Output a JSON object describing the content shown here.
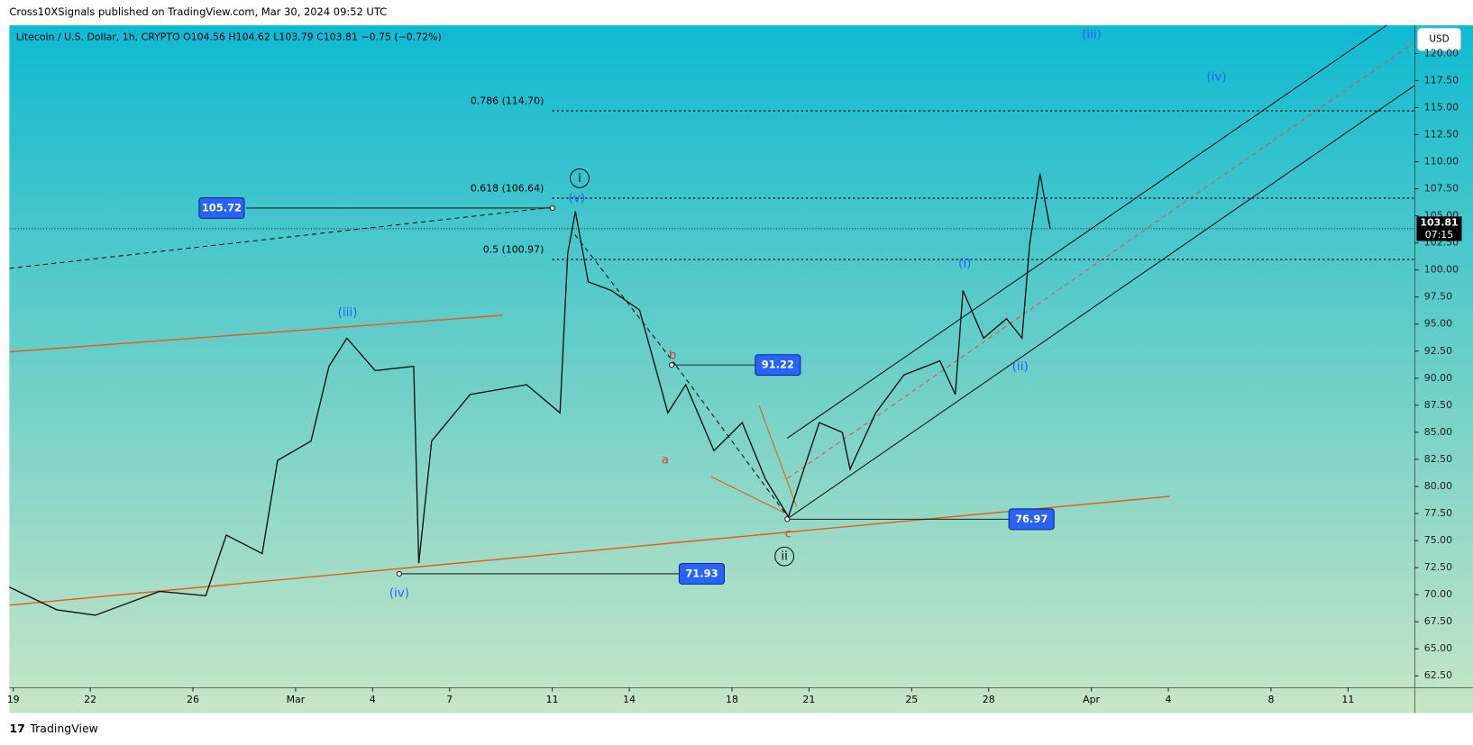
{
  "header": "Cross10XSignals published on TradingView.com, Mar 30, 2024 09:52 UTC",
  "footer": "TradingView",
  "chart_data": {
    "type": "line",
    "legend": "Litecoin / U.S. Dollar, 1h, CRYPTO  O104.56  H104.62  L103.79  C103.81  −0.75 (−0.72%)",
    "currency": "USD",
    "color": "#111111",
    "x": [
      -0.15,
      1.7,
      3.2,
      5.7,
      7.5,
      8.3,
      9.7,
      10.3,
      11.6,
      12.3,
      13.0,
      14.1,
      15.6,
      15.8,
      16.3,
      17.8,
      20.0,
      21.3,
      21.6,
      21.9,
      22.4,
      23.3,
      24.4,
      25.1,
      25.5,
      26.2,
      27.3,
      28.4,
      29.3,
      30.2,
      30.8,
      31.4,
      32.3,
      32.6,
      33.6,
      34.7,
      36.1,
      36.7,
      37.0,
      37.8,
      38.7,
      39.3,
      39.6,
      40.0,
      40.2,
      40.4
    ],
    "values": [
      70.7,
      68.6,
      68.1,
      70.3,
      69.9,
      75.5,
      73.8,
      82.4,
      84.2,
      91.1,
      93.7,
      90.7,
      91.1,
      72.9,
      84.2,
      88.5,
      89.4,
      86.8,
      101.5,
      105.4,
      98.9,
      98.1,
      96.3,
      90.3,
      86.8,
      89.4,
      83.3,
      85.9,
      80.7,
      77.2,
      81.6,
      85.9,
      85.0,
      81.6,
      86.8,
      90.3,
      91.6,
      88.5,
      98.1,
      93.7,
      95.5,
      93.7,
      102.4,
      108.9,
      106.3,
      103.8
    ],
    "xlim": [
      -0.15,
      54.6
    ],
    "xticks": [
      {
        "value": 0,
        "label": "19"
      },
      {
        "value": 3,
        "label": "22"
      },
      {
        "value": 7,
        "label": "26"
      },
      {
        "value": 11,
        "label": "Mar"
      },
      {
        "value": 14,
        "label": "4"
      },
      {
        "value": 17,
        "label": "7"
      },
      {
        "value": 21,
        "label": "11"
      },
      {
        "value": 24,
        "label": "14"
      },
      {
        "value": 28,
        "label": "18"
      },
      {
        "value": 31,
        "label": "21"
      },
      {
        "value": 35,
        "label": "25"
      },
      {
        "value": 38,
        "label": "28"
      },
      {
        "value": 42,
        "label": "Apr"
      },
      {
        "value": 45,
        "label": "4"
      },
      {
        "value": 49,
        "label": "8"
      },
      {
        "value": 52,
        "label": "11"
      }
    ],
    "ylim": [
      61.4,
      122.6
    ],
    "yticks": [
      {
        "value": 62.5,
        "label": "62.50"
      },
      {
        "value": 65,
        "label": "65.00"
      },
      {
        "value": 67.5,
        "label": "67.50"
      },
      {
        "value": 70,
        "label": "70.00"
      },
      {
        "value": 72.5,
        "label": "72.50"
      },
      {
        "value": 75,
        "label": "75.00"
      },
      {
        "value": 77.5,
        "label": "77.50"
      },
      {
        "value": 80,
        "label": "80.00"
      },
      {
        "value": 82.5,
        "label": "82.50"
      },
      {
        "value": 85,
        "label": "85.00"
      },
      {
        "value": 87.5,
        "label": "87.50"
      },
      {
        "value": 90,
        "label": "90.00"
      },
      {
        "value": 92.5,
        "label": "92.50"
      },
      {
        "value": 95,
        "label": "95.00"
      },
      {
        "value": 97.5,
        "label": "97.50"
      },
      {
        "value": 100,
        "label": "100.00"
      },
      {
        "value": 102.5,
        "label": "102.50"
      },
      {
        "value": 105,
        "label": "105.00"
      },
      {
        "value": 107.5,
        "label": "107.50"
      },
      {
        "value": 110,
        "label": "110.00"
      },
      {
        "value": 112.5,
        "label": "112.50"
      },
      {
        "value": 115,
        "label": "115.00"
      },
      {
        "value": 117.5,
        "label": "117.50"
      },
      {
        "value": 120,
        "label": "120.00"
      }
    ],
    "last_price": 103.81,
    "countdown": "07:15",
    "fib_levels": [
      {
        "value": 114.7,
        "label": "0.786 (114.70)"
      },
      {
        "value": 106.64,
        "label": "0.618 (106.64)"
      },
      {
        "value": 100.97,
        "label": "0.5 (100.97)"
      }
    ],
    "price_marks": [
      105.72,
      91.22,
      76.97,
      71.93
    ],
    "wave_labels": [
      "(iii)",
      "(iv)",
      "(v)",
      "i",
      "a",
      "b",
      "c",
      "ii",
      "(i)",
      "(ii)",
      "(iii)",
      "(iv)"
    ]
  }
}
